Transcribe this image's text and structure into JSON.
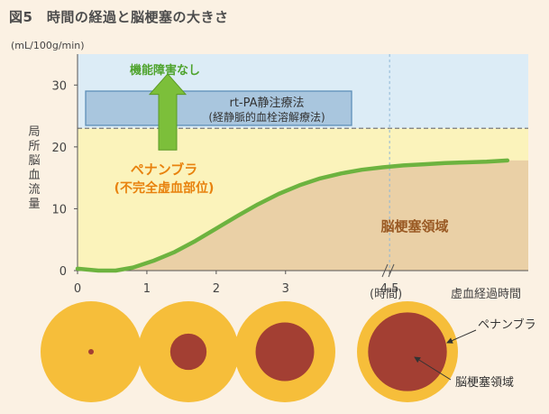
{
  "figure_title": "図5　時間の経過と脳梗塞の大きさ",
  "chart_data": {
    "type": "line",
    "ylabel_unit": "(mL/100g/min)",
    "ylabel": [
      "局",
      "所",
      "脳",
      "血",
      "流",
      "量"
    ],
    "xlabel": "虚血経過時間",
    "ylim": [
      0,
      35
    ],
    "xlim": [
      0,
      6.5
    ],
    "y_ticks": [
      0,
      10,
      20,
      30
    ],
    "x_ticks": [
      0,
      1,
      2,
      3,
      4.5
    ],
    "x_tick_labels": [
      "0",
      "1",
      "2",
      "3",
      "4.5"
    ],
    "x_break_label": "(時間)",
    "threshold_y": 23,
    "series": [
      {
        "color": "#6db33f",
        "x": [
          0,
          0.3,
          0.55,
          0.8,
          1.1,
          1.4,
          1.7,
          2.0,
          2.3,
          2.6,
          2.9,
          3.2,
          3.5,
          3.8,
          4.1,
          4.4,
          4.7,
          5.0,
          5.3,
          5.6,
          5.9,
          6.2
        ],
        "y": [
          0.3,
          0,
          0,
          0.5,
          1.6,
          3.0,
          4.8,
          6.8,
          8.8,
          10.7,
          12.4,
          13.8,
          14.9,
          15.7,
          16.3,
          16.7,
          17.0,
          17.2,
          17.4,
          17.5,
          17.6,
          17.8
        ]
      }
    ],
    "annotations": {
      "no_damage": "機能障害なし",
      "therapy_line1": "rt-PA静注療法",
      "therapy_line2": "(経静脈的血栓溶解療法)",
      "penumbra_line1": "ペナンブラ",
      "penumbra_line2": "(不完全虚血部位)",
      "infarct_region": "脳梗塞領域"
    },
    "colors": {
      "sky": "#dcecf6",
      "penumbra": "#fbf3bb",
      "infarct": "#ead0a6",
      "curve": "#6db33f",
      "box": "#a9c6de",
      "box_border": "#5e8fb8",
      "orange_text": "#e8820e",
      "infarct_text": "#9a5a24",
      "green_text": "#4ea32c"
    }
  },
  "circles": {
    "labels": [
      "ペナンブラ",
      "脳梗塞領域"
    ],
    "outer_color": "#f6be3a",
    "inner_color": "#a33f33",
    "core_fractions": [
      0.04,
      0.36,
      0.58,
      0.78
    ],
    "legend_penumbra": "ペナンブラ",
    "legend_infarct": "脳梗塞領域"
  }
}
